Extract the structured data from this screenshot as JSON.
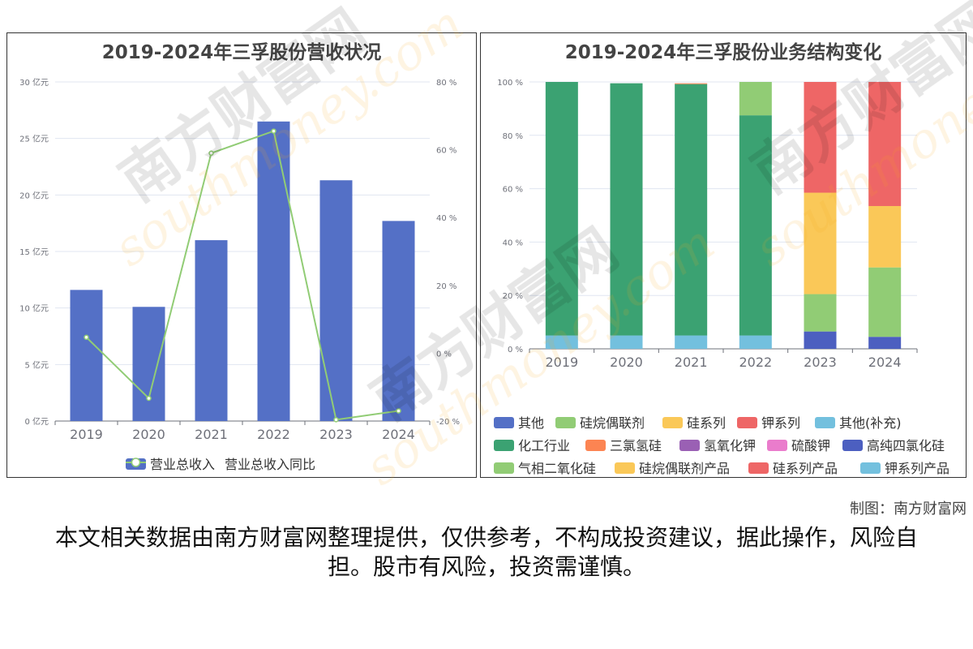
{
  "credit": "制图：南方财富网",
  "disclaimer": "本文相关数据由南方财富网整理提供，仅供参考，不构成投资建议，据此操作，风险自担。股市有风险，投资需谨慎。",
  "watermark": {
    "text_cn": "南方财富网",
    "text_en": "southmoney.com"
  },
  "chart_data": [
    {
      "type": "bar",
      "title": "2019-2024年三孚股份营收状况",
      "categories": [
        "2019",
        "2020",
        "2021",
        "2022",
        "2023",
        "2024"
      ],
      "left_axis": {
        "ticks": [
          "0 亿元",
          "5 亿元",
          "10 亿元",
          "15 亿元",
          "20 亿元",
          "25 亿元",
          "30 亿元"
        ],
        "ylim": [
          0,
          30
        ]
      },
      "right_axis": {
        "ticks": [
          "-20 %",
          "0 %",
          "20 %",
          "40 %",
          "60 %",
          "80 %"
        ],
        "ylim": [
          -20,
          80
        ]
      },
      "series": [
        {
          "name": "营业总收入",
          "type": "bar",
          "axis": "left",
          "color": "#5470c6",
          "values": [
            11.6,
            10.1,
            16.0,
            26.5,
            21.3,
            17.7
          ]
        },
        {
          "name": "营业总收入同比",
          "type": "line",
          "axis": "right",
          "color": "#91cc75",
          "values": [
            4.7,
            -13.3,
            59.0,
            65.5,
            -19.6,
            -17.0
          ]
        }
      ],
      "legend_position": "bottom",
      "grid": true
    },
    {
      "type": "bar",
      "stacked": true,
      "title": "2019-2024年三孚股份业务结构变化",
      "categories": [
        "2019",
        "2020",
        "2021",
        "2022",
        "2023",
        "2024"
      ],
      "y_axis": {
        "ticks": [
          "0 %",
          "20 %",
          "40 %",
          "60 %",
          "80 %",
          "100 %"
        ],
        "ylim": [
          0,
          100
        ]
      },
      "series": [
        {
          "name": "其他",
          "color": "#5470c6",
          "values": [
            0,
            0,
            0,
            0,
            0,
            0
          ]
        },
        {
          "name": "硅烷偶联剂",
          "color": "#91cc75",
          "values": [
            0,
            0,
            0,
            0,
            0,
            0
          ]
        },
        {
          "name": "硅系列",
          "color": "#fac858",
          "values": [
            0,
            0,
            0,
            0,
            0,
            0
          ]
        },
        {
          "name": "钾系列",
          "color": "#ee6666",
          "values": [
            0,
            0,
            0,
            0,
            0,
            0
          ]
        },
        {
          "name": "其他(补充)",
          "color": "#73c0de",
          "values": [
            5,
            5,
            5,
            5,
            0,
            0
          ]
        },
        {
          "name": "化工行业",
          "color": "#3ba272",
          "values": [
            95,
            94.5,
            94.2,
            82.5,
            0,
            0
          ]
        },
        {
          "name": "三氯氢硅",
          "color": "#fc8452",
          "values": [
            0,
            0,
            0.3,
            0,
            0,
            0
          ]
        },
        {
          "name": "氢氧化钾",
          "color": "#9a60b4",
          "values": [
            0,
            0,
            0,
            0,
            0,
            0
          ]
        },
        {
          "name": "硫酸钾",
          "color": "#ea7ccc",
          "values": [
            0,
            0,
            0,
            0,
            0,
            0
          ]
        },
        {
          "name": "高纯四氯化硅",
          "color": "#4c5fc0",
          "values": [
            0,
            0,
            0,
            0,
            6.5,
            4.5
          ]
        },
        {
          "name": "气相二氧化硅",
          "color": "#91cc75",
          "values": [
            0,
            0,
            0,
            12.5,
            14.0,
            26.0
          ]
        },
        {
          "name": "硅烷偶联剂产品",
          "color": "#fac858",
          "values": [
            0,
            0,
            0,
            0,
            38.0,
            23.0
          ]
        },
        {
          "name": "硅系列产品",
          "color": "#ee6666",
          "values": [
            0,
            0,
            0,
            0,
            41.5,
            46.5
          ]
        },
        {
          "name": "钾系列产品",
          "color": "#73c0de",
          "values": [
            0,
            0,
            0,
            0,
            0,
            0
          ]
        }
      ],
      "legend_position": "bottom",
      "grid": true
    }
  ]
}
